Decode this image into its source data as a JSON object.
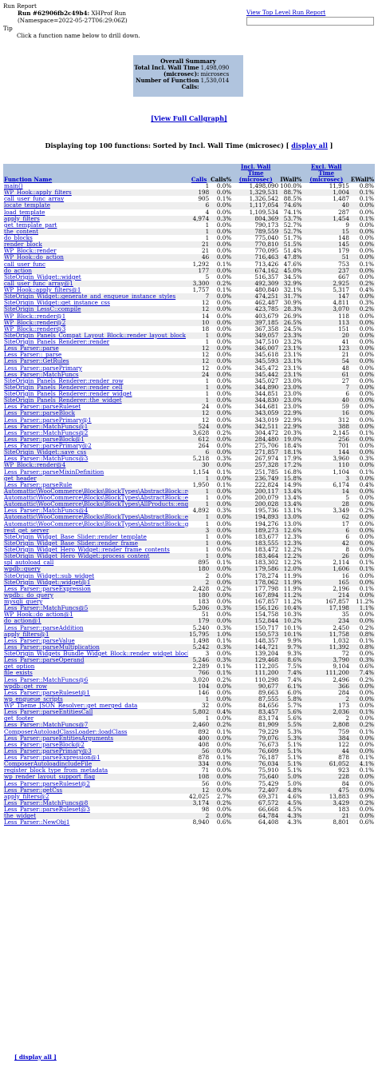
{
  "header": {
    "title": "Run Report",
    "run_label": "Run #62906fb2c49b4:",
    "run_type": "XHProf Run",
    "namespace": "(Namespace=2022-05-27T06:29:06Z)",
    "tip": "Tip",
    "tip_text": "Click a function name below to drill down.",
    "top_link": "View Top Level Run Report"
  },
  "summary": {
    "title": "Overall Summary",
    "wall_label": "Total Incl. Wall Time (microsec):",
    "wall_value": "1,498,090 microsecs",
    "calls_label": "Number of Function Calls:",
    "calls_value": "1,530,014"
  },
  "links": {
    "callgraph": "[View Full Callgraph]",
    "display_all": "display all",
    "display_all_bottom": "[ display all ]"
  },
  "table_title": "Displaying top 100 functions: Sorted by Incl. Wall Time (microsec) [",
  "columns": [
    "Function Name",
    "Calls",
    "Calls%",
    "Incl. Wall Time (microsec)",
    "IWall%",
    "Excl. Wall Time (microsec)",
    "EWall%"
  ],
  "rows": [
    [
      "main()",
      "1",
      "0.0%",
      "1,498,090",
      "100.0%",
      "11,915",
      "0.8%"
    ],
    [
      "WP_Hook::apply_filters",
      "198",
      "0.0%",
      "1,329,531",
      "88.7%",
      "1,004",
      "0.1%"
    ],
    [
      "call_user_func_array",
      "905",
      "0.1%",
      "1,326,542",
      "88.5%",
      "1,487",
      "0.1%"
    ],
    [
      "locate_template",
      "6",
      "0.0%",
      "1,117,054",
      "74.6%",
      "40",
      "0.0%"
    ],
    [
      "load_template",
      "4",
      "0.0%",
      "1,109,534",
      "74.1%",
      "287",
      "0.0%"
    ],
    [
      "apply_filters",
      "4,974",
      "0.3%",
      "804,369",
      "53.7%",
      "1,454",
      "0.1%"
    ],
    [
      "get_template_part",
      "1",
      "0.0%",
      "790,173",
      "52.7%",
      "9",
      "0.0%"
    ],
    [
      "the_content",
      "1",
      "0.0%",
      "789,559",
      "52.7%",
      "15",
      "0.0%"
    ],
    [
      "do_blocks",
      "1",
      "0.0%",
      "775,040",
      "51.7%",
      "148",
      "0.0%"
    ],
    [
      "render_block",
      "21",
      "0.0%",
      "770,810",
      "51.5%",
      "145",
      "0.0%"
    ],
    [
      "WP_Block::render",
      "21",
      "0.0%",
      "770,095",
      "51.4%",
      "179",
      "0.0%"
    ],
    [
      "WP_Hook::do_action",
      "46",
      "0.0%",
      "716,463",
      "47.8%",
      "51",
      "0.0%"
    ],
    [
      "call_user_func",
      "1,292",
      "0.1%",
      "713,426",
      "47.6%",
      "753",
      "0.1%"
    ],
    [
      "do_action",
      "177",
      "0.0%",
      "674,162",
      "45.0%",
      "237",
      "0.0%"
    ],
    [
      "SiteOrigin_Widget::widget",
      "5",
      "0.0%",
      "516,357",
      "34.5%",
      "667",
      "0.0%"
    ],
    [
      "call_user_func_array@1",
      "3,300",
      "0.2%",
      "492,309",
      "32.9%",
      "2,925",
      "0.2%"
    ],
    [
      "WP_Hook::apply_filters@1",
      "1,757",
      "0.1%",
      "480,840",
      "32.1%",
      "5,317",
      "0.4%"
    ],
    [
      "SiteOrigin_Widget::generate_and_enqueue_instance_styles",
      "7",
      "0.0%",
      "474,251",
      "31.7%",
      "147",
      "0.0%"
    ],
    [
      "SiteOrigin_Widget::get_instance_css",
      "12",
      "0.0%",
      "462,487",
      "30.9%",
      "4,811",
      "0.3%"
    ],
    [
      "SiteOrigin_LessC::compile",
      "12",
      "0.0%",
      "423,785",
      "28.3%",
      "3,070",
      "0.2%"
    ],
    [
      "WP_Block::render@1",
      "14",
      "0.0%",
      "403,679",
      "26.9%",
      "118",
      "0.0%"
    ],
    [
      "WP_Block::render@2",
      "10",
      "0.0%",
      "397,185",
      "26.5%",
      "113",
      "0.0%"
    ],
    [
      "WP_Block::render@3",
      "18",
      "0.0%",
      "367,358",
      "24.5%",
      "151",
      "0.0%"
    ],
    [
      "SiteOrigin_Panels_Compat_Layout_Block::render_layout_block",
      "1",
      "0.0%",
      "349,057",
      "23.3%",
      "20",
      "0.0%"
    ],
    [
      "SiteOrigin_Panels_Renderer::render",
      "1",
      "0.0%",
      "347,510",
      "23.2%",
      "41",
      "0.0%"
    ],
    [
      "Less_Parser::parse",
      "12",
      "0.0%",
      "346,007",
      "23.1%",
      "123",
      "0.0%"
    ],
    [
      "Less_Parser::_parse",
      "12",
      "0.0%",
      "345,618",
      "23.1%",
      "21",
      "0.0%"
    ],
    [
      "Less_Parser::GetRules",
      "12",
      "0.0%",
      "345,593",
      "23.1%",
      "54",
      "0.0%"
    ],
    [
      "Less_Parser::parsePrimary",
      "12",
      "0.0%",
      "345,472",
      "23.1%",
      "48",
      "0.0%"
    ],
    [
      "Less_Parser::MatchFuncs",
      "24",
      "0.0%",
      "345,442",
      "23.1%",
      "61",
      "0.0%"
    ],
    [
      "SiteOrigin_Panels_Renderer::render_row",
      "1",
      "0.0%",
      "345,027",
      "23.0%",
      "27",
      "0.0%"
    ],
    [
      "SiteOrigin_Panels_Renderer::render_cell",
      "1",
      "0.0%",
      "344,890",
      "23.0%",
      "7",
      "0.0%"
    ],
    [
      "SiteOrigin_Panels_Renderer::render_widget",
      "1",
      "0.0%",
      "344,851",
      "23.0%",
      "6",
      "0.0%"
    ],
    [
      "SiteOrigin_Panels_Renderer::the_widget",
      "1",
      "0.0%",
      "344,830",
      "23.0%",
      "40",
      "0.0%"
    ],
    [
      "Less_Parser::parseRuleset",
      "24",
      "0.0%",
      "344,681",
      "23.0%",
      "59",
      "0.0%"
    ],
    [
      "Less_Parser::parseBlock",
      "12",
      "0.0%",
      "343,059",
      "22.9%",
      "16",
      "0.0%"
    ],
    [
      "Less_Parser::parsePrimary@1",
      "12",
      "0.0%",
      "343,019",
      "22.9%",
      "312",
      "0.0%"
    ],
    [
      "Less_Parser::MatchFuncs@1",
      "524",
      "0.0%",
      "342,511",
      "22.9%",
      "388",
      "0.0%"
    ],
    [
      "Less_Parser::MatchFuncs@2",
      "3,628",
      "0.2%",
      "304,472",
      "20.3%",
      "2,145",
      "0.1%"
    ],
    [
      "Less_Parser::parseBlock@1",
      "612",
      "0.0%",
      "284,480",
      "19.0%",
      "256",
      "0.0%"
    ],
    [
      "Less_Parser::parsePrimary@2",
      "264",
      "0.0%",
      "275,706",
      "18.4%",
      "701",
      "0.0%"
    ],
    [
      "SiteOrigin_Widget::save_css",
      "6",
      "0.0%",
      "271,857",
      "18.1%",
      "144",
      "0.0%"
    ],
    [
      "Less_Parser::MatchFuncs@3",
      "5,218",
      "0.3%",
      "267,974",
      "17.9%",
      "3,960",
      "0.3%"
    ],
    [
      "WP_Block::render@4",
      "30",
      "0.0%",
      "257,328",
      "17.2%",
      "110",
      "0.0%"
    ],
    [
      "Less_Parser::parseMixinDefinition",
      "1,154",
      "0.1%",
      "251,785",
      "16.8%",
      "1,104",
      "0.1%"
    ],
    [
      "get_header",
      "1",
      "0.0%",
      "236,749",
      "15.8%",
      "3",
      "0.0%"
    ],
    [
      "Less_Parser::parseRule",
      "1,950",
      "0.1%",
      "222,824",
      "14.9%",
      "6,174",
      "0.4%"
    ],
    [
      "Automattic\\WooCommerce\\Blocks\\BlockTypes\\AbstractBlock::render_callback",
      "1",
      "0.0%",
      "200,117",
      "13.4%",
      "14",
      "0.0%"
    ],
    [
      "Automattic\\WooCommerce\\Blocks\\BlockTypes\\AbstractBlock::enqueue_assets",
      "1",
      "0.0%",
      "200,079",
      "13.4%",
      "5",
      "0.0%"
    ],
    [
      "Automattic\\WooCommerce\\Blocks\\BlockTypes\\AllProducts::enqueue_data",
      "1",
      "0.0%",
      "200,028",
      "13.4%",
      "28",
      "0.0%"
    ],
    [
      "Less_Parser::MatchFuncs@4",
      "4,892",
      "0.3%",
      "195,736",
      "13.1%",
      "3,349",
      "0.2%"
    ],
    [
      "Automattic\\WooCommerce\\Blocks\\BlockTypes\\AbstractBlock::enqueue_data",
      "1",
      "0.0%",
      "194,893",
      "13.0%",
      "62",
      "0.0%"
    ],
    [
      "Automattic\\WooCommerce\\Blocks\\BlockTypes\\AbstractBlock::get_routes_from_namespace",
      "1",
      "0.0%",
      "194,276",
      "13.0%",
      "17",
      "0.0%"
    ],
    [
      "rest_get_server",
      "3",
      "0.0%",
      "189,273",
      "12.6%",
      "6",
      "0.0%"
    ],
    [
      "SiteOrigin_Widget_Base_Slider::render_template",
      "1",
      "0.0%",
      "183,677",
      "12.3%",
      "6",
      "0.0%"
    ],
    [
      "SiteOrigin_Widget_Base_Slider::render_frame",
      "1",
      "0.0%",
      "183,555",
      "12.3%",
      "42",
      "0.0%"
    ],
    [
      "SiteOrigin_Widget_Hero_Widget::render_frame_contents",
      "1",
      "0.0%",
      "183,472",
      "12.2%",
      "8",
      "0.0%"
    ],
    [
      "SiteOrigin_Widget_Hero_Widget::process_content",
      "1",
      "0.0%",
      "183,464",
      "12.2%",
      "26",
      "0.0%"
    ],
    [
      "spl_autoload_call",
      "895",
      "0.1%",
      "183,302",
      "12.2%",
      "2,114",
      "0.1%"
    ],
    [
      "wpdb::query",
      "180",
      "0.0%",
      "179,586",
      "12.0%",
      "1,606",
      "0.1%"
    ],
    [
      "SiteOrigin_Widget::sub_widget",
      "2",
      "0.0%",
      "178,274",
      "11.9%",
      "16",
      "0.0%"
    ],
    [
      "SiteOrigin_Widget::widget@1",
      "2",
      "0.0%",
      "178,062",
      "11.9%",
      "165",
      "0.0%"
    ],
    [
      "Less_Parser::parseExpression",
      "2,428",
      "0.2%",
      "177,798",
      "11.9%",
      "2,196",
      "0.1%"
    ],
    [
      "wpdb::_do_query",
      "180",
      "0.0%",
      "167,894",
      "11.2%",
      "214",
      "0.0%"
    ],
    [
      "mysqli_query",
      "183",
      "0.0%",
      "167,857",
      "11.2%",
      "167,857",
      "11.2%"
    ],
    [
      "Less_Parser::MatchFuncs@5",
      "5,206",
      "0.3%",
      "156,126",
      "10.4%",
      "17,198",
      "1.1%"
    ],
    [
      "WP_Hook::do_action@1",
      "51",
      "0.0%",
      "154,758",
      "10.3%",
      "35",
      "0.0%"
    ],
    [
      "do_action@1",
      "179",
      "0.0%",
      "152,844",
      "10.2%",
      "234",
      "0.0%"
    ],
    [
      "Less_Parser::parseAddition",
      "5,240",
      "0.3%",
      "150,717",
      "10.1%",
      "2,450",
      "0.2%"
    ],
    [
      "apply_filters@1",
      "15,795",
      "1.0%",
      "150,573",
      "10.1%",
      "11,758",
      "0.8%"
    ],
    [
      "Less_Parser::parseValue",
      "1,498",
      "0.1%",
      "148,357",
      "9.9%",
      "1,032",
      "0.1%"
    ],
    [
      "Less_Parser::parseMultiplication",
      "5,242",
      "0.3%",
      "144,721",
      "9.7%",
      "11,392",
      "0.8%"
    ],
    [
      "SiteOrigin_Widgets_Bundle_Widget_Block::render_widget_block",
      "3",
      "0.0%",
      "139,204",
      "9.3%",
      "72",
      "0.0%"
    ],
    [
      "Less_Parser::parseOperand",
      "5,246",
      "0.3%",
      "129,468",
      "8.6%",
      "3,790",
      "0.3%"
    ],
    [
      "get_option",
      "2,289",
      "0.1%",
      "112,205",
      "7.5%",
      "9,104",
      "0.6%"
    ],
    [
      "file_exists",
      "766",
      "0.1%",
      "111,200",
      "7.4%",
      "111,200",
      "7.4%"
    ],
    [
      "Less_Parser::MatchFuncs@6",
      "3,020",
      "0.2%",
      "110,298",
      "7.4%",
      "2,496",
      "0.2%"
    ],
    [
      "wpdb::get_row",
      "104",
      "0.0%",
      "90,677",
      "6.1%",
      "366",
      "0.0%"
    ],
    [
      "Less_Parser::parseRuleset@1",
      "146",
      "0.0%",
      "89,663",
      "6.0%",
      "284",
      "0.0%"
    ],
    [
      "wp_enqueue_scripts",
      "1",
      "0.0%",
      "87,555",
      "5.8%",
      "2",
      "0.0%"
    ],
    [
      "WP_Theme_JSON_Resolver::get_merged_data",
      "32",
      "0.0%",
      "84,656",
      "5.7%",
      "173",
      "0.0%"
    ],
    [
      "Less_Parser::parseEntitiesCall",
      "5,802",
      "0.4%",
      "83,457",
      "5.6%",
      "2,036",
      "0.1%"
    ],
    [
      "get_footer",
      "1",
      "0.0%",
      "83,174",
      "5.6%",
      "2",
      "0.0%"
    ],
    [
      "Less_Parser::MatchFuncs@7",
      "2,460",
      "0.2%",
      "81,909",
      "5.5%",
      "2,808",
      "0.2%"
    ],
    [
      "ComposerAutoloadClassLoader::loadClass",
      "892",
      "0.1%",
      "79,229",
      "5.3%",
      "759",
      "0.1%"
    ],
    [
      "Less_Parser::parseEntitiesArguments",
      "400",
      "0.0%",
      "79,076",
      "5.3%",
      "384",
      "0.0%"
    ],
    [
      "Less_Parser::parseBlock@2",
      "408",
      "0.0%",
      "76,673",
      "5.1%",
      "122",
      "0.0%"
    ],
    [
      "Less_Parser::parsePrimary@3",
      "56",
      "0.0%",
      "76,609",
      "5.1%",
      "44",
      "0.0%"
    ],
    [
      "Less_Parser::parseExpression@1",
      "878",
      "0.1%",
      "76,187",
      "5.1%",
      "878",
      "0.1%"
    ],
    [
      "ComposerAutoloadincludeFile",
      "334",
      "0.0%",
      "76,034",
      "5.1%",
      "61,052",
      "4.1%"
    ],
    [
      "register_block_type_from_metadata",
      "71",
      "0.0%",
      "75,910",
      "5.1%",
      "923",
      "0.1%"
    ],
    [
      "wp_render_layout_support_flag",
      "108",
      "0.0%",
      "75,640",
      "5.0%",
      "228",
      "0.0%"
    ],
    [
      "Less_Parser::parseRuleset@2",
      "56",
      "0.0%",
      "75,429",
      "5.0%",
      "84",
      "0.0%"
    ],
    [
      "Less_Parser::getCss",
      "12",
      "0.0%",
      "72,407",
      "4.8%",
      "475",
      "0.0%"
    ],
    [
      "apply_filters@2",
      "42,025",
      "2.7%",
      "69,371",
      "4.6%",
      "13,883",
      "0.9%"
    ],
    [
      "Less_Parser::MatchFuncs@8",
      "3,174",
      "0.2%",
      "67,572",
      "4.5%",
      "3,429",
      "0.2%"
    ],
    [
      "Less_Parser::parseRuleset@3",
      "98",
      "0.0%",
      "66,668",
      "4.5%",
      "183",
      "0.0%"
    ],
    [
      "the_widget",
      "2",
      "0.0%",
      "64,784",
      "4.3%",
      "21",
      "0.0%"
    ],
    [
      "Less_Parser::NewObj1",
      "8,940",
      "0.6%",
      "64,408",
      "4.3%",
      "8,801",
      "0.6%"
    ]
  ]
}
